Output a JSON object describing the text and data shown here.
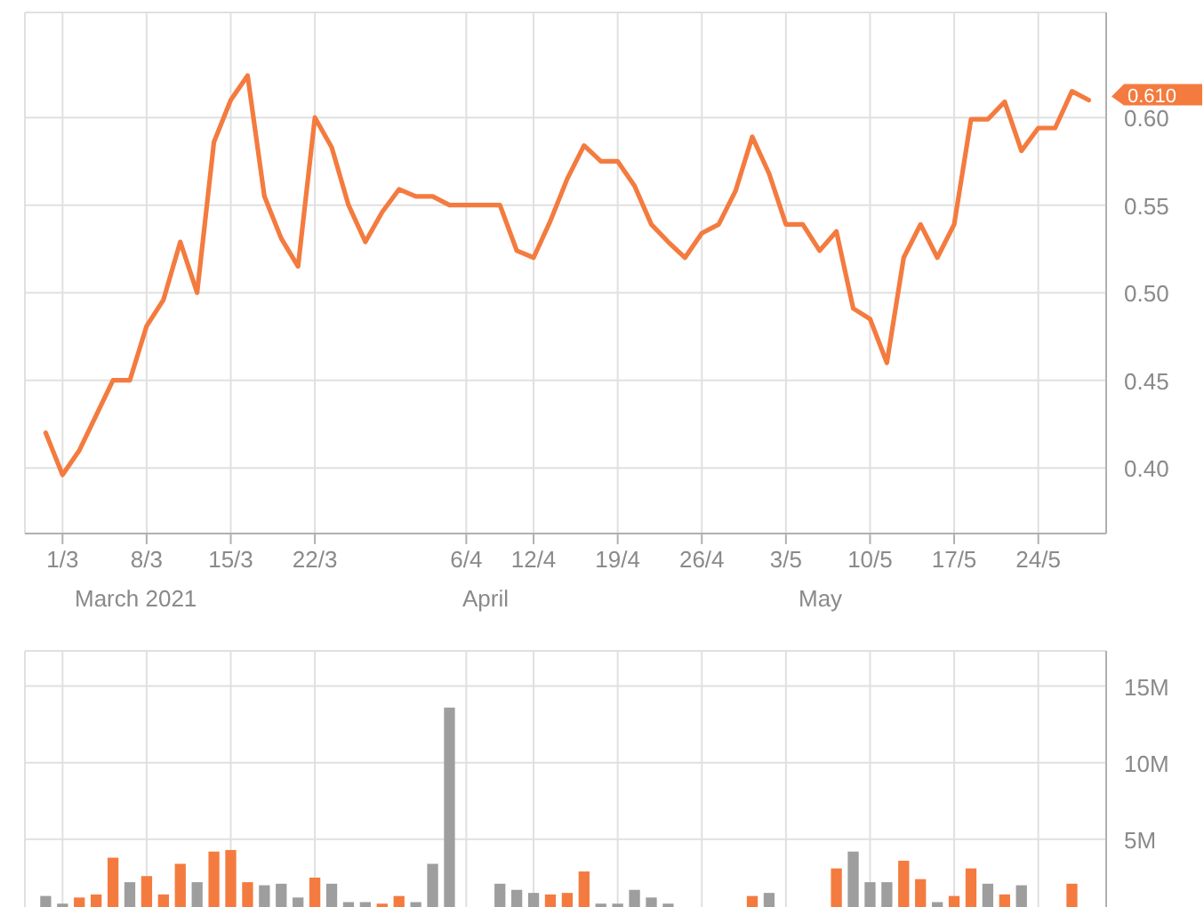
{
  "chart_data": [
    {
      "type": "line",
      "categories": [
        null,
        "1/3",
        null,
        null,
        null,
        null,
        "8/3",
        null,
        null,
        null,
        null,
        "15/3",
        null,
        null,
        null,
        null,
        "22/3",
        null,
        null,
        null,
        null,
        null,
        null,
        null,
        null,
        "6/4",
        null,
        null,
        null,
        "12/4",
        null,
        null,
        null,
        null,
        "19/4",
        null,
        null,
        null,
        null,
        "26/4",
        null,
        null,
        null,
        null,
        "3/5",
        null,
        null,
        null,
        null,
        "10/5",
        null,
        null,
        null,
        null,
        "17/5",
        null,
        null,
        null,
        null,
        "24/5",
        null,
        null,
        null
      ],
      "values": [
        0.42,
        0.396,
        0.41,
        0.43,
        0.45,
        0.45,
        0.481,
        0.496,
        0.529,
        0.5,
        0.586,
        0.61,
        0.624,
        0.555,
        0.531,
        0.515,
        0.6,
        0.583,
        0.55,
        0.529,
        0.546,
        0.559,
        0.555,
        0.555,
        0.55,
        0.55,
        0.55,
        0.55,
        0.524,
        0.52,
        0.541,
        0.565,
        0.584,
        0.575,
        0.575,
        0.561,
        0.539,
        0.529,
        0.52,
        0.534,
        0.539,
        0.558,
        0.589,
        0.568,
        0.539,
        0.539,
        0.524,
        0.535,
        0.491,
        0.485,
        0.46,
        0.52,
        0.539,
        0.52,
        0.539,
        0.599,
        0.599,
        0.609,
        0.581,
        0.594,
        0.594,
        0.615,
        0.61
      ],
      "color": "#f47b3f",
      "ylim": [
        0.3625,
        0.66
      ],
      "yticks": [
        {
          "value": 0.4,
          "label": "0.40"
        },
        {
          "value": 0.45,
          "label": "0.45"
        },
        {
          "value": 0.5,
          "label": "0.50"
        },
        {
          "value": 0.55,
          "label": "0.55"
        },
        {
          "value": 0.6,
          "label": "0.60"
        }
      ],
      "grid": true,
      "annotations": [
        "March 2021",
        "April",
        "May",
        "0.610"
      ]
    },
    {
      "type": "bar",
      "categories": [
        null,
        null,
        null,
        null,
        null,
        null,
        null,
        null,
        null,
        null,
        null,
        null,
        null,
        null,
        null,
        null,
        null,
        null,
        null,
        null,
        null,
        null,
        null,
        null,
        null,
        null,
        null,
        null,
        null,
        null,
        null,
        null,
        null,
        null,
        null,
        null,
        null,
        null,
        null,
        null,
        null,
        null,
        null,
        null,
        null,
        null,
        null,
        null,
        null,
        null,
        null,
        null,
        null,
        null,
        null,
        null,
        null,
        null,
        null,
        null,
        null,
        null,
        null
      ],
      "values": [
        1.3,
        0.8,
        1.2,
        1.4,
        3.8,
        2.2,
        2.6,
        1.4,
        3.4,
        2.2,
        4.2,
        4.3,
        2.2,
        2.0,
        2.1,
        1.2,
        2.5,
        2.1,
        0.9,
        0.9,
        0.8,
        1.3,
        0.9,
        3.4,
        13.6,
        null,
        null,
        2.1,
        1.7,
        1.5,
        1.4,
        1.5,
        2.9,
        0.8,
        0.8,
        1.7,
        1.2,
        0.8,
        null,
        null,
        null,
        null,
        1.3,
        1.5,
        null,
        null,
        null,
        3.1,
        4.2,
        2.2,
        2.2,
        3.6,
        2.4,
        0.9,
        1.3,
        3.1,
        2.1,
        1.4,
        2.0,
        null,
        null,
        2.1,
        null
      ],
      "colors": [
        "#9e9e9e",
        "#9e9e9e",
        "#f47b3f",
        "#f47b3f",
        "#f47b3f",
        "#9e9e9e",
        "#f47b3f",
        "#f47b3f",
        "#f47b3f",
        "#9e9e9e",
        "#f47b3f",
        "#f47b3f",
        "#f47b3f",
        "#9e9e9e",
        "#9e9e9e",
        "#9e9e9e",
        "#f47b3f",
        "#9e9e9e",
        "#9e9e9e",
        "#9e9e9e",
        "#f47b3f",
        "#f47b3f",
        "#9e9e9e",
        "#9e9e9e",
        "#9e9e9e",
        null,
        null,
        "#9e9e9e",
        "#9e9e9e",
        "#9e9e9e",
        "#f47b3f",
        "#f47b3f",
        "#f47b3f",
        "#9e9e9e",
        "#9e9e9e",
        "#9e9e9e",
        "#9e9e9e",
        "#9e9e9e",
        null,
        null,
        null,
        null,
        "#f47b3f",
        "#9e9e9e",
        null,
        null,
        null,
        "#f47b3f",
        "#9e9e9e",
        "#9e9e9e",
        "#9e9e9e",
        "#f47b3f",
        "#f47b3f",
        "#9e9e9e",
        "#f47b3f",
        "#f47b3f",
        "#9e9e9e",
        "#f47b3f",
        "#9e9e9e",
        null,
        null,
        "#f47b3f",
        null
      ],
      "ylim": [
        0,
        17.3
      ],
      "yticks": [
        {
          "value": 5,
          "label": "5M"
        },
        {
          "value": 10,
          "label": "10M"
        },
        {
          "value": 15,
          "label": "15M"
        }
      ],
      "grid": true
    }
  ]
}
